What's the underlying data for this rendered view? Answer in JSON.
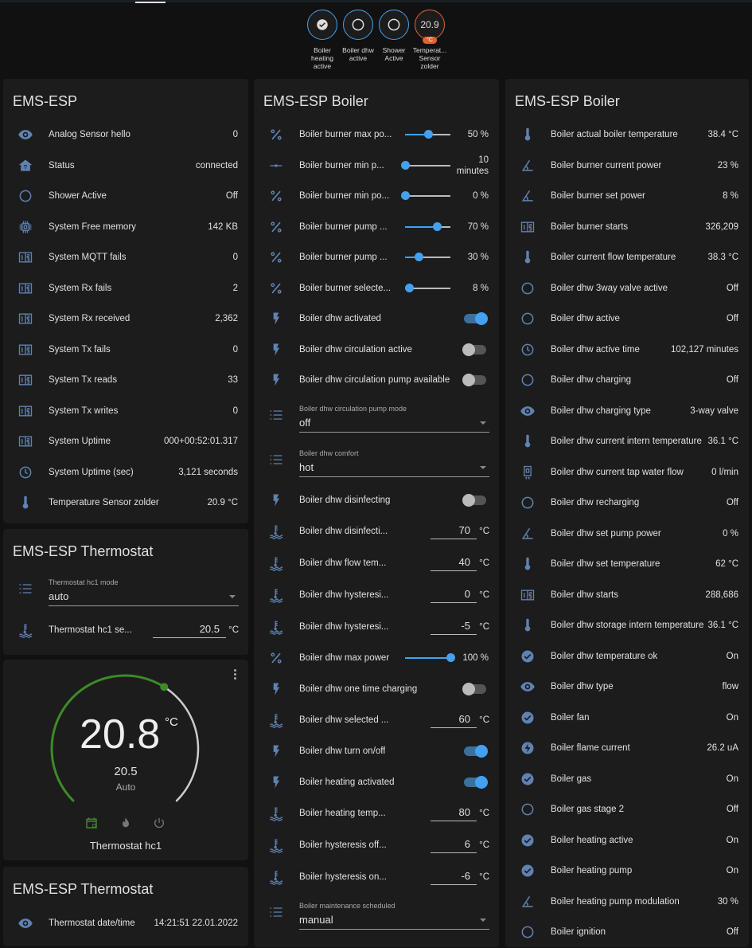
{
  "colors": {
    "accent": "#44a0f0",
    "icon": "#5f82b3",
    "card": "#1c1c1c",
    "background": "#111111",
    "thermostat_green": "#3e8a28",
    "sensor_badge": "#e5622c"
  },
  "badges": [
    {
      "icon": "check-circle",
      "label": "Boiler heating active"
    },
    {
      "icon": "circle-outline",
      "label": "Boiler dhw active"
    },
    {
      "icon": "circle-outline",
      "label": "Shower Active"
    },
    {
      "value": "20.9",
      "unit": "°C",
      "label": "Temperat... Sensor zolder"
    }
  ],
  "card_ems": {
    "title": "EMS-ESP",
    "rows": [
      {
        "icon": "eye",
        "label": "Analog Sensor hello",
        "value": "0"
      },
      {
        "icon": "home",
        "label": "Status",
        "value": "connected"
      },
      {
        "icon": "circle",
        "label": "Shower Active",
        "value": "Off"
      },
      {
        "icon": "chip",
        "label": "System Free memory",
        "value": "142 KB"
      },
      {
        "icon": "counter",
        "label": "System MQTT fails",
        "value": "0"
      },
      {
        "icon": "counter",
        "label": "System Rx fails",
        "value": "2"
      },
      {
        "icon": "counter",
        "label": "System Rx received",
        "value": "2,362"
      },
      {
        "icon": "counter",
        "label": "System Tx fails",
        "value": "0"
      },
      {
        "icon": "counter",
        "label": "System Tx reads",
        "value": "33"
      },
      {
        "icon": "counter",
        "label": "System Tx writes",
        "value": "0"
      },
      {
        "icon": "counter",
        "label": "System Uptime",
        "value": "000+00:52:01.317"
      },
      {
        "icon": "clock",
        "label": "System Uptime (sec)",
        "value": "3,121 seconds"
      },
      {
        "icon": "thermo",
        "label": "Temperature Sensor zolder",
        "value": "20.9 °C"
      }
    ]
  },
  "card_thermostat": {
    "title": "EMS-ESP Thermostat",
    "rows": [
      {
        "type": "select",
        "icon": "list",
        "label": "Thermostat hc1 mode",
        "value": "auto"
      },
      {
        "type": "number",
        "icon": "water",
        "label": "Thermostat hc1 se...",
        "value": "20.5",
        "unit": "°C"
      }
    ]
  },
  "thermostat": {
    "current": "20.8",
    "unit": "°C",
    "target": "20.5",
    "target_value": 20.5,
    "mode": "Auto",
    "name": "Thermostat hc1",
    "modes": [
      "schedule",
      "heat",
      "off"
    ],
    "active_mode": "schedule"
  },
  "card_thermostat2": {
    "title": "EMS-ESP Thermostat",
    "rows": [
      {
        "icon": "eye",
        "label": "Thermostat date/time",
        "value": "14:21:51 22.01.2022"
      }
    ]
  },
  "card_boiler_controls": {
    "title": "EMS-ESP Boiler",
    "rows": [
      {
        "type": "slider",
        "icon": "percent",
        "label": "Boiler burner max po...",
        "value": "50 %",
        "level": 0.5
      },
      {
        "type": "slider",
        "icon": "slider",
        "label": "Boiler burner min p...",
        "value": "10 minutes",
        "level": 0
      },
      {
        "type": "slider",
        "icon": "percent",
        "label": "Boiler burner min po...",
        "value": "0 %",
        "level": 0
      },
      {
        "type": "slider",
        "icon": "percent",
        "label": "Boiler burner pump ...",
        "value": "70 %",
        "level": 0.7
      },
      {
        "type": "slider",
        "icon": "percent",
        "label": "Boiler burner pump ...",
        "value": "30 %",
        "level": 0.3
      },
      {
        "type": "slider",
        "icon": "percent",
        "label": "Boiler burner selecte...",
        "value": "8 %",
        "level": 0.08
      },
      {
        "type": "toggle",
        "icon": "bolt",
        "label": "Boiler dhw activated",
        "on": true
      },
      {
        "type": "toggle",
        "icon": "bolt",
        "label": "Boiler dhw circulation active",
        "on": false
      },
      {
        "type": "toggle",
        "icon": "bolt",
        "label": "Boiler dhw circulation pump available",
        "on": false
      },
      {
        "type": "select",
        "icon": "list",
        "label": "Boiler dhw circulation pump mode",
        "value": "off"
      },
      {
        "type": "select",
        "icon": "list",
        "label": "Boiler dhw comfort",
        "value": "hot"
      },
      {
        "type": "toggle",
        "icon": "bolt",
        "label": "Boiler dhw disinfecting",
        "on": false
      },
      {
        "type": "number",
        "icon": "water",
        "label": "Boiler dhw disinfecti...",
        "value": "70",
        "unit": "°C"
      },
      {
        "type": "number",
        "icon": "water",
        "label": "Boiler dhw flow tem...",
        "value": "40",
        "unit": "°C"
      },
      {
        "type": "number",
        "icon": "water",
        "label": "Boiler dhw hysteresi...",
        "value": "0",
        "unit": "°C"
      },
      {
        "type": "number",
        "icon": "water",
        "label": "Boiler dhw hysteresi...",
        "value": "-5",
        "unit": "°C"
      },
      {
        "type": "slider",
        "icon": "percent",
        "label": "Boiler dhw max power",
        "value": "100 %",
        "level": 1
      },
      {
        "type": "toggle",
        "icon": "bolt",
        "label": "Boiler dhw one time charging",
        "on": false
      },
      {
        "type": "number",
        "icon": "water",
        "label": "Boiler dhw selected ...",
        "value": "60",
        "unit": "°C"
      },
      {
        "type": "toggle",
        "icon": "bolt",
        "label": "Boiler dhw turn on/off",
        "on": true
      },
      {
        "type": "toggle",
        "icon": "bolt",
        "label": "Boiler heating activated",
        "on": true
      },
      {
        "type": "number",
        "icon": "water",
        "label": "Boiler heating temp...",
        "value": "80",
        "unit": "°C"
      },
      {
        "type": "number",
        "icon": "water",
        "label": "Boiler hysteresis off...",
        "value": "6",
        "unit": "°C"
      },
      {
        "type": "number",
        "icon": "water",
        "label": "Boiler hysteresis on...",
        "value": "-6",
        "unit": "°C"
      },
      {
        "type": "select",
        "icon": "list",
        "label": "Boiler maintenance scheduled",
        "value": "manual"
      }
    ]
  },
  "card_boiler_sensors": {
    "title": "EMS-ESP Boiler",
    "rows": [
      {
        "icon": "thermo",
        "label": "Boiler actual boiler temperature",
        "value": "38.4 °C"
      },
      {
        "icon": "angle",
        "label": "Boiler burner current power",
        "value": "23 %"
      },
      {
        "icon": "angle",
        "label": "Boiler burner set power",
        "value": "8 %"
      },
      {
        "icon": "counter",
        "label": "Boiler burner starts",
        "value": "326,209"
      },
      {
        "icon": "thermo",
        "label": "Boiler current flow temperature",
        "value": "38.3 °C"
      },
      {
        "icon": "circle",
        "label": "Boiler dhw 3way valve active",
        "value": "Off"
      },
      {
        "icon": "circle",
        "label": "Boiler dhw active",
        "value": "Off"
      },
      {
        "icon": "clock",
        "label": "Boiler dhw active time",
        "value": "102,127 minutes"
      },
      {
        "icon": "circle",
        "label": "Boiler dhw charging",
        "value": "Off"
      },
      {
        "icon": "eye",
        "label": "Boiler dhw charging type",
        "value": "3-way valve"
      },
      {
        "icon": "thermo",
        "label": "Boiler dhw current intern temperature",
        "value": "36.1 °C"
      },
      {
        "icon": "pump",
        "label": "Boiler dhw current tap water flow",
        "value": "0 l/min"
      },
      {
        "icon": "circle",
        "label": "Boiler dhw recharging",
        "value": "Off"
      },
      {
        "icon": "angle",
        "label": "Boiler dhw set pump power",
        "value": "0 %"
      },
      {
        "icon": "thermo",
        "label": "Boiler dhw set temperature",
        "value": "62 °C"
      },
      {
        "icon": "counter",
        "label": "Boiler dhw starts",
        "value": "288,686"
      },
      {
        "icon": "thermo",
        "label": "Boiler dhw storage intern temperature",
        "value": "36.1 °C"
      },
      {
        "icon": "check",
        "label": "Boiler dhw temperature ok",
        "value": "On"
      },
      {
        "icon": "eye",
        "label": "Boiler dhw type",
        "value": "flow"
      },
      {
        "icon": "check",
        "label": "Boiler fan",
        "value": "On"
      },
      {
        "icon": "flash",
        "label": "Boiler flame current",
        "value": "26.2 uA"
      },
      {
        "icon": "check",
        "label": "Boiler gas",
        "value": "On"
      },
      {
        "icon": "circle",
        "label": "Boiler gas stage 2",
        "value": "Off"
      },
      {
        "icon": "check",
        "label": "Boiler heating active",
        "value": "On"
      },
      {
        "icon": "check",
        "label": "Boiler heating pump",
        "value": "On"
      },
      {
        "icon": "angle",
        "label": "Boiler heating pump modulation",
        "value": "30 %"
      },
      {
        "icon": "circle",
        "label": "Boiler ignition",
        "value": "Off"
      }
    ]
  }
}
